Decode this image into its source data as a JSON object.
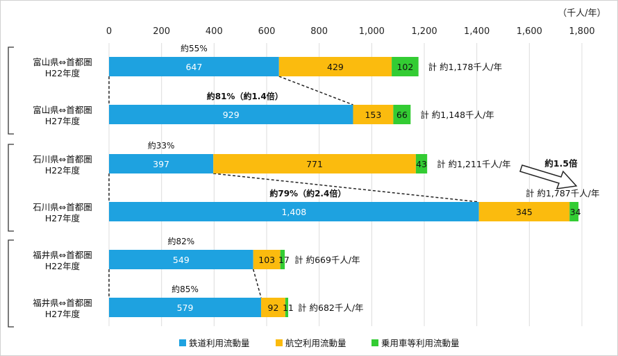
{
  "chart_data": {
    "type": "bar",
    "orientation": "horizontal",
    "stacked": true,
    "unit": "（千人/年）",
    "xlim": [
      0,
      1800
    ],
    "ticks": [
      "0",
      "200",
      "400",
      "600",
      "800",
      "1,000",
      "1,200",
      "1,400",
      "1,600",
      "1,800"
    ],
    "tick_values": [
      0,
      200,
      400,
      600,
      800,
      1000,
      1200,
      1400,
      1600,
      1800
    ],
    "colors": {
      "rail": "#1ea2e0",
      "air": "#fbbb0e",
      "car": "#33cc33"
    },
    "series": [
      {
        "name": "鉄道利用流動量",
        "values": [
          647,
          929,
          397,
          1408,
          549,
          579
        ]
      },
      {
        "name": "航空利用流動量",
        "values": [
          429,
          153,
          771,
          345,
          103,
          92
        ]
      },
      {
        "name": "乗用車等利用流動量",
        "values": [
          102,
          66,
          43,
          34,
          17,
          11
        ]
      }
    ],
    "categories": [
      {
        "line1": "富山県⇔首都圏",
        "line2": "H22年度"
      },
      {
        "line1": "富山県⇔首都圏",
        "line2": "H27年度"
      },
      {
        "line1": "石川県⇔首都圏",
        "line2": "H22年度"
      },
      {
        "line1": "石川県⇔首都圏",
        "line2": "H27年度"
      },
      {
        "line1": "福井県⇔首都圏",
        "line2": "H22年度"
      },
      {
        "line1": "福井県⇔首都圏",
        "line2": "H27年度"
      }
    ],
    "data_labels": [
      [
        "647",
        "429",
        "102"
      ],
      [
        "929",
        "153",
        "66"
      ],
      [
        "397",
        "771",
        "43"
      ],
      [
        "1,408",
        "345",
        "34"
      ],
      [
        "549",
        "103",
        "17"
      ],
      [
        "579",
        "92",
        "11"
      ]
    ],
    "totals": [
      "計 約1,178千人/年",
      "計 約1,148千人/年",
      "計 約1,211千人/年",
      "計 約1,787千人/年",
      "計 約669千人/年",
      "計 約682千人/年"
    ],
    "rail_share_labels": [
      "約55%",
      "約81%（約1.4倍）",
      "約33%",
      "約79%（約2.4倍）",
      "約82%",
      "約85%"
    ],
    "growth_annotation": "約1.5倍",
    "legend_position": "bottom",
    "grid": true
  }
}
